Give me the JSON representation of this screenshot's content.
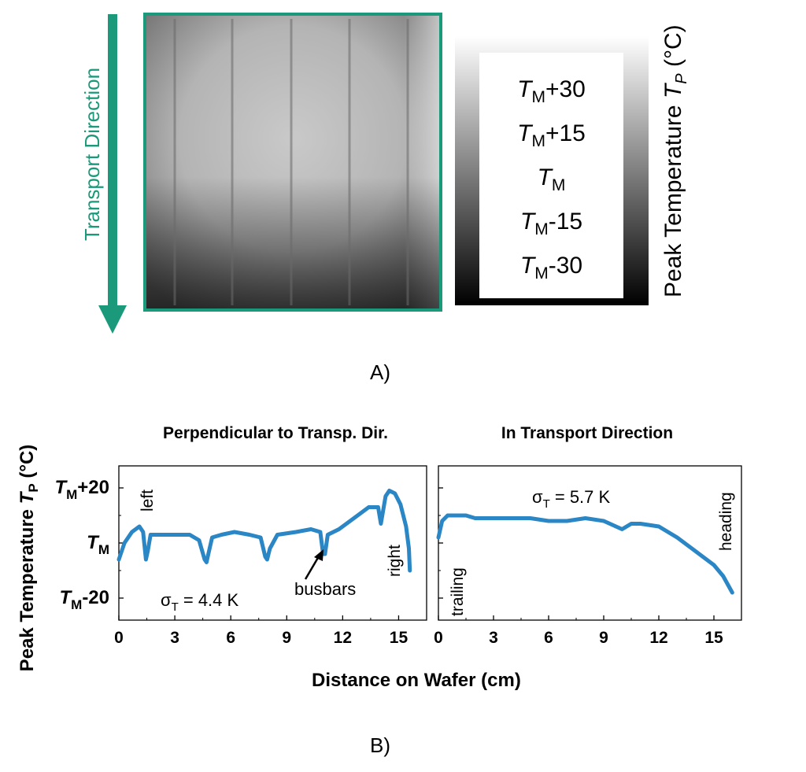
{
  "panel_a": {
    "caption": "A)",
    "transport_label": "Transport Direction",
    "colorbar_title": "Peak Temperature",
    "colorbar_title_symbol": "T",
    "colorbar_title_symbol_sub": "P",
    "colorbar_title_unit": "(°C)",
    "colorbar_labels": [
      {
        "base": "T",
        "sub": "M",
        "suffix": "+30"
      },
      {
        "base": "T",
        "sub": "M",
        "suffix": "+15"
      },
      {
        "base": "T",
        "sub": "M",
        "suffix": ""
      },
      {
        "base": "T",
        "sub": "M",
        "suffix": "-15"
      },
      {
        "base": "T",
        "sub": "M",
        "suffix": "-30"
      }
    ],
    "colors": {
      "accent": "#1a9a7a"
    }
  },
  "panel_b": {
    "caption": "B)",
    "ylabel": "Peak Temperature",
    "ylabel_symbol": "T",
    "ylabel_symbol_sub": "P",
    "ylabel_unit": "(°C)",
    "xlabel": "Distance on Wafer (cm)",
    "colors": {
      "series": "#2a86c4"
    }
  },
  "chart_data": [
    {
      "type": "line",
      "title": "Perpendicular to Transp. Dir.",
      "xlim": [
        0,
        16.5
      ],
      "ylim": [
        -28,
        28
      ],
      "x_ticks": [
        0,
        3,
        6,
        9,
        12,
        15
      ],
      "x_tick_labels": [
        "0",
        "3",
        "6",
        "9",
        "12",
        "15"
      ],
      "y_ticks": [
        -20,
        0,
        20
      ],
      "y_tick_labels": [
        {
          "base": "T",
          "sub": "M",
          "suffix": "-20"
        },
        {
          "base": "T",
          "sub": "M",
          "suffix": ""
        },
        {
          "base": "T",
          "sub": "M",
          "suffix": "+20"
        }
      ],
      "annotations": [
        {
          "text": "left",
          "rotated": true
        },
        {
          "text": "right",
          "rotated": true
        },
        {
          "text": "busbars",
          "arrow": true
        },
        {
          "text": "σ",
          "sub": "T",
          "suffix": " = 4.4 K"
        }
      ],
      "x": [
        0,
        0.3,
        0.7,
        1.1,
        1.3,
        1.45,
        1.55,
        1.7,
        2.2,
        3.0,
        3.8,
        4.3,
        4.6,
        4.7,
        4.8,
        5.0,
        5.5,
        6.2,
        7.0,
        7.6,
        7.85,
        7.95,
        8.1,
        8.5,
        9.5,
        10.3,
        10.8,
        10.95,
        11.05,
        11.2,
        11.8,
        12.6,
        13.4,
        13.9,
        14.05,
        14.2,
        14.3,
        14.5,
        14.8,
        15.1,
        15.4,
        15.55,
        15.6
      ],
      "y": [
        -6,
        0,
        4,
        6,
        4,
        -6,
        -3,
        3,
        3,
        3,
        3,
        1,
        -6,
        -7,
        -4,
        2,
        3,
        4,
        3,
        2,
        -5,
        -6,
        -2,
        3,
        4,
        5,
        4,
        -4,
        -4,
        3,
        5,
        9,
        13,
        13,
        7,
        13,
        17,
        19,
        18,
        14,
        6,
        -2,
        -10
      ]
    },
    {
      "type": "line",
      "title": "In Transport Direction",
      "xlim": [
        0,
        16.5
      ],
      "ylim": [
        -28,
        28
      ],
      "x_ticks": [
        0,
        3,
        6,
        9,
        12,
        15
      ],
      "x_tick_labels": [
        "0",
        "3",
        "6",
        "9",
        "12",
        "15"
      ],
      "annotations": [
        {
          "text": "trailing",
          "rotated": true
        },
        {
          "text": "heading",
          "rotated": true
        },
        {
          "text": "σ",
          "sub": "T",
          "suffix": " = 5.7 K"
        }
      ],
      "x": [
        0,
        0.2,
        0.5,
        1.0,
        1.5,
        2.0,
        3.0,
        4.0,
        5.0,
        6.0,
        7.0,
        8.0,
        9.0,
        10.0,
        10.5,
        11.0,
        12.0,
        13.0,
        14.0,
        15.0,
        15.5,
        16.0
      ],
      "y": [
        2,
        8,
        10,
        10,
        10,
        9,
        9,
        9,
        9,
        8,
        8,
        9,
        8,
        5,
        7,
        7,
        6,
        2,
        -3,
        -8,
        -12,
        -18
      ]
    }
  ]
}
